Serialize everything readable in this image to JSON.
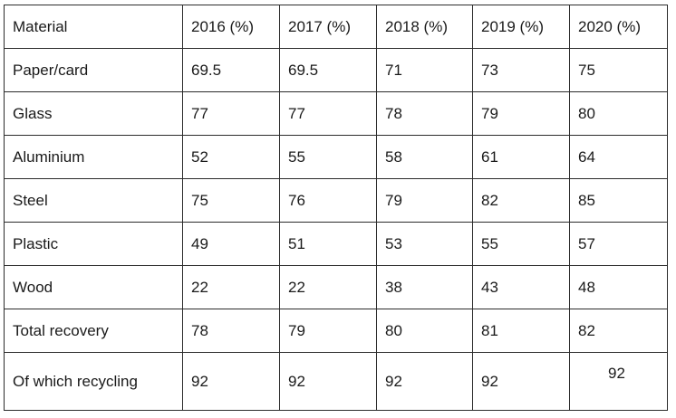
{
  "table": {
    "headers": [
      "Material",
      "2016 (%)",
      "2017 (%)",
      "2018 (%)",
      "2019 (%)",
      "2020 (%)"
    ],
    "rows": [
      [
        "Paper/card",
        "69.5",
        "69.5",
        "71",
        "73",
        "75"
      ],
      [
        "Glass",
        "77",
        "77",
        "78",
        "79",
        "80"
      ],
      [
        "Aluminium",
        "52",
        "55",
        "58",
        "61",
        "64"
      ],
      [
        "Steel",
        "75",
        "76",
        "79",
        "82",
        "85"
      ],
      [
        "Plastic",
        "49",
        "51",
        "53",
        "55",
        "57"
      ],
      [
        "Wood",
        "22",
        "22",
        "38",
        "43",
        "48"
      ],
      [
        "Total recovery",
        "78",
        "79",
        "80",
        "81",
        "82"
      ],
      [
        "Of which recycling",
        "92",
        "92",
        "92",
        "92",
        "92"
      ]
    ]
  }
}
